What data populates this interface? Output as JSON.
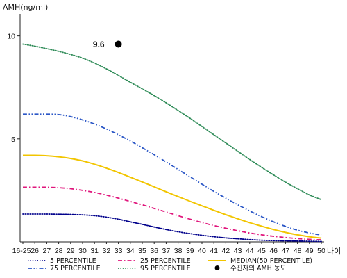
{
  "chart_data": {
    "type": "line",
    "title": "",
    "ylabel": "AMH(ng/ml)",
    "xlabel": "나이",
    "ylim": [
      0,
      11
    ],
    "yticks": [
      5,
      10
    ],
    "categories": [
      "16-25",
      "26",
      "27",
      "28",
      "29",
      "30",
      "31",
      "32",
      "33",
      "34",
      "35",
      "36",
      "37",
      "38",
      "39",
      "40",
      "41",
      "42",
      "43",
      "44",
      "45",
      "46",
      "47",
      "48",
      "49",
      "50"
    ],
    "grid": false,
    "legend_position": "bottom",
    "series": [
      {
        "name": "5 PERCENTILE",
        "color": "#00008b",
        "dash": "dotted",
        "values": [
          1.35,
          1.35,
          1.35,
          1.34,
          1.33,
          1.31,
          1.27,
          1.2,
          1.1,
          0.97,
          0.85,
          0.72,
          0.6,
          0.49,
          0.4,
          0.32,
          0.25,
          0.19,
          0.15,
          0.11,
          0.08,
          0.06,
          0.05,
          0.04,
          0.03,
          0.02
        ]
      },
      {
        "name": "25 PERCENTILE",
        "color": "#e0167c",
        "dash": "dashdot",
        "values": [
          2.65,
          2.65,
          2.65,
          2.63,
          2.58,
          2.5,
          2.4,
          2.27,
          2.12,
          1.96,
          1.8,
          1.62,
          1.45,
          1.27,
          1.1,
          0.94,
          0.79,
          0.66,
          0.54,
          0.43,
          0.34,
          0.27,
          0.21,
          0.16,
          0.12,
          0.1
        ]
      },
      {
        "name": "MEDIAN(50 PERCENTILE)",
        "color": "#f2c500",
        "dash": "solid",
        "values": [
          4.2,
          4.2,
          4.18,
          4.13,
          4.05,
          3.93,
          3.77,
          3.58,
          3.37,
          3.14,
          2.91,
          2.67,
          2.43,
          2.2,
          1.97,
          1.75,
          1.53,
          1.32,
          1.12,
          0.93,
          0.76,
          0.6,
          0.46,
          0.34,
          0.25,
          0.18
        ]
      },
      {
        "name": "75 PERCENTILE",
        "color": "#2a56c6",
        "dash": "dashdotdot",
        "values": [
          6.2,
          6.2,
          6.2,
          6.18,
          6.08,
          5.92,
          5.72,
          5.48,
          5.2,
          4.9,
          4.57,
          4.23,
          3.88,
          3.52,
          3.16,
          2.8,
          2.45,
          2.12,
          1.8,
          1.5,
          1.22,
          0.97,
          0.75,
          0.57,
          0.43,
          0.33
        ]
      },
      {
        "name": "95 PERCENTILE",
        "color": "#2e8b57",
        "dash": "dotted",
        "values": [
          9.6,
          9.5,
          9.38,
          9.25,
          9.1,
          8.92,
          8.68,
          8.4,
          8.08,
          7.75,
          7.43,
          7.1,
          6.75,
          6.38,
          6.0,
          5.6,
          5.2,
          4.8,
          4.4,
          4.0,
          3.62,
          3.25,
          2.9,
          2.58,
          2.28,
          2.05
        ]
      }
    ],
    "points": [
      {
        "name": "수진자의 AMH 농도",
        "x": "33",
        "y": 9.6,
        "label": "9.6",
        "color": "#000000"
      }
    ]
  }
}
